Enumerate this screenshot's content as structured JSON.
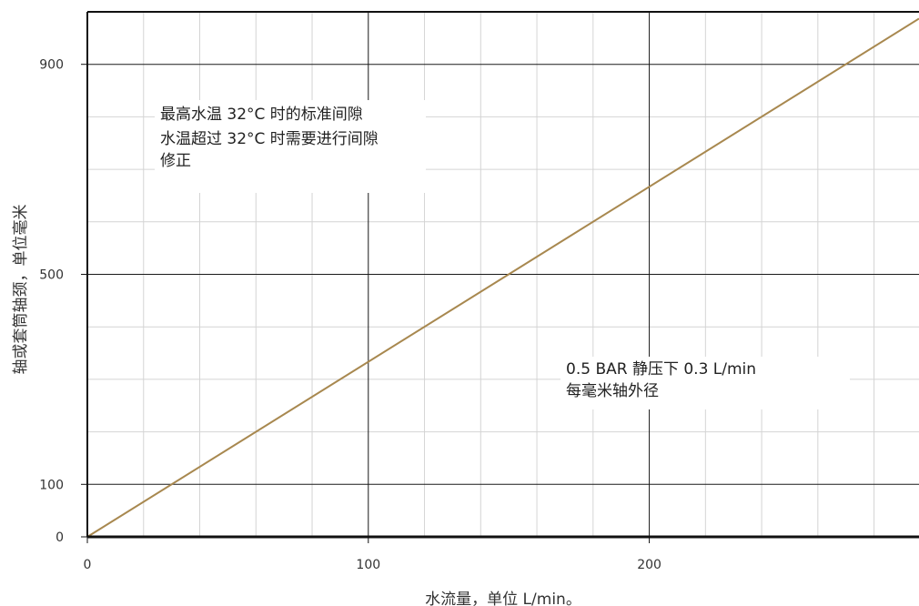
{
  "chart_data": {
    "type": "line",
    "xlabel": "水流量，单位 L/min。",
    "ylabel": "轴或套筒轴颈，单位毫米",
    "xlim": [
      0,
      296
    ],
    "ylim": [
      0,
      1000
    ],
    "x_ticks": [
      0,
      100,
      200
    ],
    "y_ticks": [
      0,
      100,
      500,
      900
    ],
    "grid": true,
    "series": [
      {
        "x": [
          0,
          296
        ],
        "y": [
          0,
          987
        ],
        "color": "#a8884f"
      }
    ],
    "annotations": [
      {
        "lines": [
          "最高水温 32°C 时的标准间隙",
          "水温超过 32°C 时需要进行间隙",
          "修正"
        ]
      },
      {
        "lines": [
          "0.5 BAR 静压下 0.3 L/min",
          "每毫米轴外径"
        ]
      }
    ]
  }
}
